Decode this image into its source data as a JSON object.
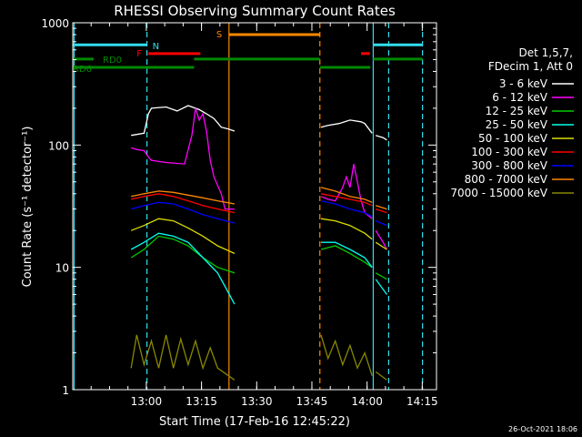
{
  "colors": {
    "background": "#000000",
    "axes": "#ffffff",
    "cyan": "#33ddee",
    "orange": "#ff8800",
    "red": "#ff0000",
    "green": "#008800"
  },
  "chart_data": {
    "type": "line",
    "title": "RHESSI Observing Summary Count Rates",
    "xlabel": "Start Time (17-Feb-16 12:45:22)",
    "ylabel": "Count Rate (s⁻¹ detector⁻¹)",
    "footer_date": "26-Oct-2021 18:06",
    "x_unit": "minutes after 12:45:22 UT",
    "xlim": [
      -5.37,
      93.5
    ],
    "ylim": [
      1,
      1000
    ],
    "y_scale": "log",
    "x_ticks": [
      {
        "label": "13:00",
        "value": 14.63
      },
      {
        "label": "13:15",
        "value": 29.63
      },
      {
        "label": "13:30",
        "value": 44.63
      },
      {
        "label": "13:45",
        "value": 59.63
      },
      {
        "label": "14:00",
        "value": 74.63
      },
      {
        "label": "14:15",
        "value": 89.63
      }
    ],
    "y_ticks": [
      {
        "label": "1",
        "value": 1
      },
      {
        "label": "10",
        "value": 10
      },
      {
        "label": "100",
        "value": 100
      },
      {
        "label": "1000",
        "value": 1000
      }
    ],
    "legend": {
      "header": [
        "Det 1,5,7,",
        "FDecim 1, Att 0"
      ],
      "placement": "right"
    },
    "series": [
      {
        "name": "3 - 6 keV",
        "color": "#ffffff",
        "segments": [
          {
            "x": [
              10.5,
              12,
              14,
              15.2,
              16,
              20,
              23,
              26,
              29,
              31,
              33,
              35,
              37,
              38.6
            ],
            "y": [
              120,
              122,
              125,
              180,
              200,
              205,
              190,
              210,
              195,
              180,
              165,
              140,
              135,
              130
            ]
          },
          {
            "x": [
              62.1,
              64,
              67,
              70,
              73,
              74,
              76
            ],
            "y": [
              140,
              145,
              150,
              160,
              155,
              150,
              125
            ]
          },
          {
            "x": [
              77,
              79,
              80
            ],
            "y": [
              120,
              115,
              110
            ]
          }
        ]
      },
      {
        "name": "6 - 12 keV",
        "color": "#ff00ff",
        "segments": [
          {
            "x": [
              10.5,
              12,
              14,
              15.2,
              16,
              20,
              25,
              27,
              28,
              29,
              30,
              31,
              32,
              33,
              35,
              36,
              38.6
            ],
            "y": [
              95,
              92,
              90,
              80,
              75,
              72,
              70,
              120,
              200,
              160,
              180,
              130,
              75,
              55,
              40,
              30,
              30
            ]
          },
          {
            "x": [
              62.1,
              64,
              66,
              68,
              69,
              70,
              71,
              72,
              73,
              74,
              76
            ],
            "y": [
              38,
              36,
              35,
              45,
              55,
              45,
              70,
              50,
              35,
              28,
              25
            ]
          },
          {
            "x": [
              77,
              79,
              80
            ],
            "y": [
              20,
              16,
              14
            ]
          }
        ]
      },
      {
        "name": "12 - 25 keV",
        "color": "#00cc00",
        "segments": [
          {
            "x": [
              10.5,
              14,
              18,
              22,
              26,
              30,
              34,
              38.6
            ],
            "y": [
              12,
              14,
              18,
              17,
              15,
              12,
              10,
              9
            ]
          },
          {
            "x": [
              62.1,
              66,
              70,
              74,
              76
            ],
            "y": [
              14,
              15,
              13,
              11,
              10
            ]
          },
          {
            "x": [
              77,
              80
            ],
            "y": [
              9,
              8
            ]
          }
        ]
      },
      {
        "name": "25 - 50 keV",
        "color": "#00ffee",
        "segments": [
          {
            "x": [
              10.5,
              14,
              18,
              22,
              26,
              30,
              34,
              36,
              38.6
            ],
            "y": [
              14,
              16,
              19,
              18,
              16,
              12,
              9,
              7,
              5
            ]
          },
          {
            "x": [
              62.1,
              66,
              70,
              74,
              76
            ],
            "y": [
              16,
              16,
              14,
              12,
              10
            ]
          },
          {
            "x": [
              77,
              80
            ],
            "y": [
              8,
              6
            ]
          }
        ]
      },
      {
        "name": "50 - 100 keV",
        "color": "#dddd00",
        "segments": [
          {
            "x": [
              10.5,
              14,
              18,
              22,
              26,
              30,
              34,
              38.6
            ],
            "y": [
              20,
              22,
              25,
              24,
              21,
              18,
              15,
              13
            ]
          },
          {
            "x": [
              62.1,
              66,
              70,
              74,
              76
            ],
            "y": [
              25,
              24,
              22,
              19,
              17
            ]
          },
          {
            "x": [
              77,
              80
            ],
            "y": [
              16,
              14
            ]
          }
        ]
      },
      {
        "name": "100 - 300 keV",
        "color": "#ff0000",
        "segments": [
          {
            "x": [
              10.5,
              14,
              18,
              22,
              26,
              30,
              34,
              38.6
            ],
            "y": [
              36,
              38,
              40,
              38,
              35,
              32,
              30,
              28
            ]
          },
          {
            "x": [
              62.1,
              66,
              70,
              74,
              76
            ],
            "y": [
              40,
              38,
              36,
              34,
              32
            ]
          },
          {
            "x": [
              77,
              80
            ],
            "y": [
              30,
              28
            ]
          }
        ]
      },
      {
        "name": "300 - 800 keV",
        "color": "#0000ff",
        "segments": [
          {
            "x": [
              10.5,
              14,
              18,
              22,
              26,
              30,
              34,
              38.6
            ],
            "y": [
              30,
              32,
              34,
              33,
              30,
              27,
              25,
              23
            ]
          },
          {
            "x": [
              62.1,
              66,
              70,
              74,
              76
            ],
            "y": [
              35,
              33,
              30,
              28,
              26
            ]
          },
          {
            "x": [
              77,
              80
            ],
            "y": [
              24,
              22
            ]
          }
        ]
      },
      {
        "name": "800 - 7000 keV",
        "color": "#ff8800",
        "segments": [
          {
            "x": [
              10.5,
              14,
              18,
              22,
              26,
              30,
              34,
              38.6
            ],
            "y": [
              38,
              40,
              42,
              41,
              39,
              37,
              35,
              33
            ]
          },
          {
            "x": [
              62.1,
              66,
              70,
              74,
              76
            ],
            "y": [
              45,
              42,
              38,
              36,
              34
            ]
          },
          {
            "x": [
              77,
              80
            ],
            "y": [
              32,
              30
            ]
          }
        ]
      },
      {
        "name": "7000 - 15000 keV",
        "color": "#888800",
        "segments": [
          {
            "x": [
              10.5,
              12,
              14,
              16,
              18,
              20,
              22,
              24,
              26,
              28,
              30,
              32,
              34,
              38.6
            ],
            "y": [
              1.5,
              2.8,
              1.6,
              2.5,
              1.5,
              2.8,
              1.5,
              2.6,
              1.6,
              2.5,
              1.5,
              2.2,
              1.5,
              1.2
            ]
          },
          {
            "x": [
              62.1,
              64,
              66,
              68,
              70,
              72,
              74,
              76
            ],
            "y": [
              2.8,
              1.8,
              2.5,
              1.6,
              2.3,
              1.5,
              2.0,
              1.3
            ]
          },
          {
            "x": [
              77,
              80
            ],
            "y": [
              1.4,
              1.2
            ]
          }
        ]
      }
    ],
    "vertical_lines": [
      {
        "x": -5.0,
        "color": "#33ddee",
        "style": "solid"
      },
      {
        "x": 14.8,
        "color": "#33ddee",
        "style": "dashed"
      },
      {
        "x": 37.1,
        "color": "#ff8800",
        "style": "solid"
      },
      {
        "x": 61.8,
        "color": "#ff8800",
        "style": "dashed"
      },
      {
        "x": 76.3,
        "color": "#33ddee",
        "style": "solid"
      },
      {
        "x": 80.5,
        "color": "#33ddee",
        "style": "dashed"
      },
      {
        "x": 89.7,
        "color": "#33ddee",
        "style": "dashed"
      }
    ],
    "status_bars": [
      {
        "label": "N",
        "color": "#33ddee",
        "y": 660,
        "segments": [
          [
            -5.37,
            14.8
          ],
          [
            76.3,
            89.7
          ]
        ]
      },
      {
        "label": "S",
        "color": "#ff8800",
        "y": 800,
        "segments": [
          [
            37.1,
            61.8
          ]
        ]
      },
      {
        "label": "F",
        "color": "#ff0000",
        "y": 560,
        "segments": [
          [
            15.2,
            29.3
          ],
          [
            73.0,
            75.4
          ]
        ]
      },
      {
        "label": "RD0",
        "color": "#008800",
        "y": 505,
        "segments": [
          [
            -5.37,
            0.3
          ],
          [
            27.6,
            61.8
          ],
          [
            76.3,
            89.7
          ]
        ]
      },
      {
        "label": "RD6",
        "color": "#008800",
        "y": 432,
        "segments": [
          [
            -5.37,
            27.6
          ],
          [
            61.8,
            75.5
          ]
        ]
      }
    ]
  }
}
